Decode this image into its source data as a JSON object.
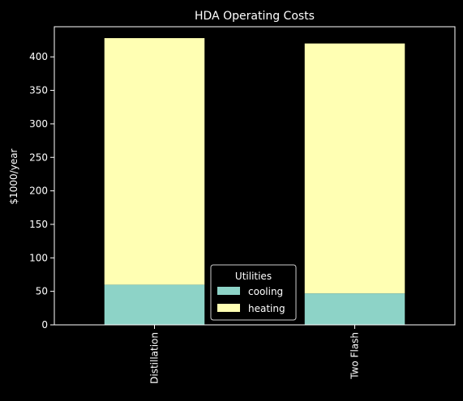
{
  "chart_data": {
    "type": "bar",
    "stacked": true,
    "title": "HDA Operating Costs",
    "xlabel": "",
    "ylabel": "$1000/year",
    "categories": [
      "Distillation",
      "Two Flash"
    ],
    "series": [
      {
        "name": "cooling",
        "values": [
          60,
          47
        ],
        "color": "#8dd3c7"
      },
      {
        "name": "heating",
        "values": [
          368,
          373
        ],
        "color": "#ffffb3"
      }
    ],
    "ylim": [
      0,
      445
    ],
    "yticks": [
      0,
      50,
      100,
      150,
      200,
      250,
      300,
      350,
      400
    ],
    "legend": {
      "title": "Utilities",
      "placement": "lower-center"
    },
    "grid": false,
    "background": "#000000",
    "axis_color": "#ffffff"
  }
}
